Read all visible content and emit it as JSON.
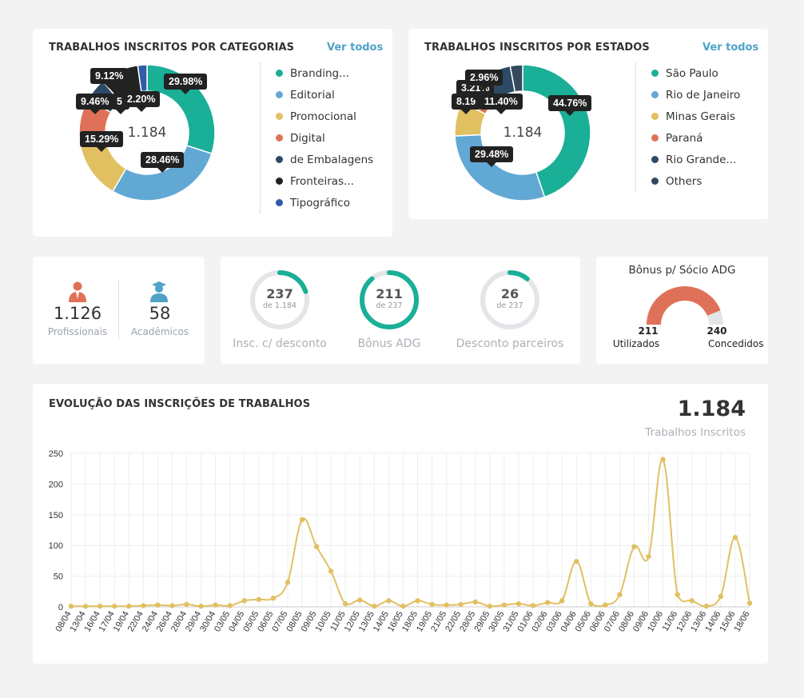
{
  "categories_card": {
    "title": "TRABALHOS INSCRITOS POR CATEGORIAS",
    "see_all": "Ver todos",
    "center_total": "1.184",
    "legend": [
      {
        "label": "Branding...",
        "color": "#1aaf97"
      },
      {
        "label": "Editorial",
        "color": "#62a8d4"
      },
      {
        "label": "Promocional",
        "color": "#e1c061"
      },
      {
        "label": "Digital",
        "color": "#e07159"
      },
      {
        "label": "de Embalagens",
        "color": "#2d4a66"
      },
      {
        "label": "Fronteiras...",
        "color": "#222222"
      },
      {
        "label": "Tipográfico",
        "color": "#2f5ba8"
      }
    ],
    "slices": [
      29.98,
      28.46,
      15.29,
      9.46,
      5.49,
      9.12,
      2.2
    ],
    "tooltips": [
      "29.98%",
      "28.46%",
      "15.29%",
      "9.46%",
      "5.",
      "9.12%",
      "2.20%"
    ]
  },
  "states_card": {
    "title": "TRABALHOS INSCRITOS POR ESTADOS",
    "see_all": "Ver todos",
    "center_total": "1.184",
    "legend": [
      {
        "label": "São Paulo",
        "color": "#1aaf97"
      },
      {
        "label": "Rio de Janeiro",
        "color": "#62a8d4"
      },
      {
        "label": "Minas Gerais",
        "color": "#e1c061"
      },
      {
        "label": "Paraná",
        "color": "#e07159"
      },
      {
        "label": "Rio Grande...",
        "color": "#2d4a66"
      },
      {
        "label": "Others",
        "color": "#34495e"
      }
    ],
    "slices": [
      44.76,
      29.48,
      8.19,
      3.21,
      11.4,
      2.96
    ],
    "tooltips": [
      "44.76%",
      "29.48%",
      "8.19",
      "3.21%",
      "11.40%",
      "2.96%"
    ]
  },
  "people_card": {
    "professionals_count": "1.126",
    "professionals_label": "Profissionais",
    "academics_count": "58",
    "academics_label": "Acadêmicos"
  },
  "rings_card": {
    "rings": [
      {
        "value": "237",
        "sub": "de 1.184",
        "label": "Insc. c/ desconto",
        "fraction": 0.2
      },
      {
        "value": "211",
        "sub": "de 237",
        "label": "Bônus ADG",
        "fraction": 0.89
      },
      {
        "value": "26",
        "sub": "de 237",
        "label": "Desconto parceiros",
        "fraction": 0.11
      }
    ],
    "ring_color": "#1aaf97",
    "track_color": "#e3e5e8"
  },
  "bonus_card": {
    "title": "Bônus p/ Sócio ADG",
    "used_value": "211",
    "used_label": "Utilizados",
    "granted_value": "240",
    "granted_label": "Concedidos",
    "fraction": 0.879,
    "fill_color": "#e07159",
    "track_color": "#e3e5e8"
  },
  "evolution_card": {
    "title": "EVOLUÇÃO DAS INSCRIÇÕES DE TRABALHOS",
    "total": "1.184",
    "total_label": "Trabalhos Inscritos"
  },
  "chart_data": {
    "type": "line",
    "title": "EVOLUÇÃO DAS INSCRIÇÕES DE TRABALHOS",
    "xlabel": "",
    "ylabel": "",
    "ylim": [
      0,
      250
    ],
    "yticks": [
      0,
      50,
      100,
      150,
      200,
      250
    ],
    "color": "#e1c061",
    "x": [
      "08/04",
      "13/04",
      "16/04",
      "17/04",
      "19/04",
      "22/04",
      "24/04",
      "26/04",
      "28/04",
      "29/04",
      "30/04",
      "03/05",
      "04/05",
      "05/05",
      "06/05",
      "07/05",
      "08/05",
      "09/05",
      "10/05",
      "11/05",
      "12/05",
      "13/05",
      "14/05",
      "16/05",
      "18/05",
      "19/05",
      "21/05",
      "22/05",
      "28/05",
      "29/05",
      "30/05",
      "31/05",
      "01/06",
      "02/06",
      "03/06",
      "04/06",
      "05/06",
      "06/06",
      "07/06",
      "08/06",
      "09/06",
      "10/06",
      "11/06",
      "12/06",
      "13/06",
      "14/06",
      "15/06",
      "18/06"
    ],
    "values": [
      1,
      1,
      1,
      1,
      1,
      2,
      3,
      2,
      4,
      1,
      3,
      2,
      10,
      12,
      14,
      40,
      142,
      98,
      58,
      5,
      11,
      1,
      10,
      1,
      10,
      4,
      3,
      4,
      8,
      1,
      3,
      5,
      2,
      7,
      10,
      74,
      5,
      3,
      20,
      98,
      82,
      240,
      20,
      10,
      1,
      17,
      113,
      6
    ]
  }
}
